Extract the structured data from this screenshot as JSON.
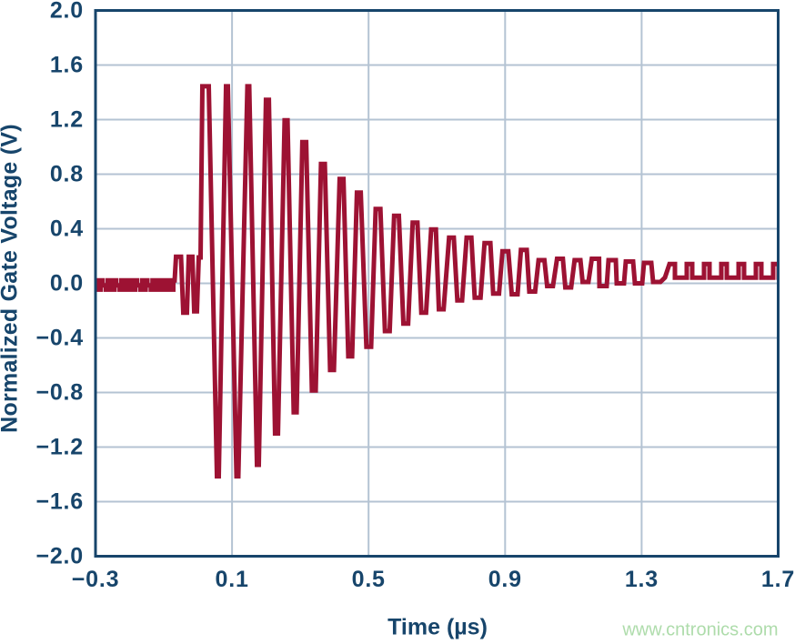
{
  "chart_data": {
    "type": "line",
    "title": "",
    "xlabel": "Time (µs)",
    "ylabel": "Normalized Gate Voltage (V)",
    "xlim": [
      -0.3,
      1.7
    ],
    "ylim": [
      -2.0,
      2.0
    ],
    "xticks": {
      "values": [
        -0.3,
        0.1,
        0.5,
        0.9,
        1.3,
        1.7
      ],
      "labels": [
        "−0.3",
        "0.1",
        "0.5",
        "0.9",
        "1.3",
        "1.7"
      ]
    },
    "yticks": {
      "values": [
        2.0,
        1.6,
        1.2,
        0.8,
        0.4,
        0.0,
        -0.4,
        -0.8,
        -1.2,
        -1.6,
        -2.0
      ],
      "labels": [
        "2.0",
        "1.6",
        "1.2",
        "0.8",
        "0.4",
        "0.0",
        "−0.4",
        "−0.8",
        "−1.2",
        "−1.6",
        "−2.0"
      ]
    },
    "grid": true,
    "legend_position": "none",
    "series": [
      {
        "name": "normalized-gate-voltage",
        "color": "#9d1233",
        "t_us": [
          -0.3,
          -0.3,
          -0.2949,
          -0.2949,
          -0.2899,
          -0.2899,
          -0.2848,
          -0.2848,
          -0.2797,
          -0.2797,
          -0.2747,
          -0.2747,
          -0.2696,
          -0.2696,
          -0.2646,
          -0.2646,
          -0.2595,
          -0.2595,
          -0.2544,
          -0.2544,
          -0.2494,
          -0.2494,
          -0.2443,
          -0.2443,
          -0.2392,
          -0.2392,
          -0.2342,
          -0.2342,
          -0.2291,
          -0.2291,
          -0.2241,
          -0.2241,
          -0.219,
          -0.219,
          -0.2139,
          -0.2139,
          -0.2089,
          -0.2089,
          -0.2038,
          -0.2038,
          -0.1987,
          -0.1987,
          -0.1937,
          -0.1937,
          -0.1886,
          -0.1886,
          -0.1835,
          -0.1835,
          -0.1785,
          -0.1785,
          -0.1734,
          -0.1734,
          -0.1684,
          -0.1684,
          -0.1633,
          -0.1633,
          -0.1582,
          -0.1582,
          -0.1532,
          -0.1532,
          -0.1481,
          -0.1481,
          -0.143,
          -0.143,
          -0.138,
          -0.138,
          -0.1329,
          -0.1329,
          -0.1278,
          -0.1278,
          -0.1228,
          -0.1228,
          -0.1177,
          -0.1177,
          -0.1127,
          -0.1127,
          -0.1076,
          -0.1076,
          -0.1025,
          -0.1025,
          -0.0975,
          -0.0975,
          -0.0924,
          -0.0924,
          -0.0873,
          -0.0873,
          -0.0823,
          -0.0823,
          -0.0772,
          -0.0772,
          -0.0722,
          -0.0722,
          -0.0682,
          -0.0642,
          -0.0495,
          -0.0428,
          -0.0322,
          -0.0268,
          -0.0162,
          -0.0109,
          -0.0029,
          0.0025,
          0.0078,
          0.0131,
          0.0318,
          0.0558,
          0.0611,
          0.0824,
          0.0877,
          0.1131,
          0.1184,
          0.145,
          0.1504,
          0.173,
          0.1783,
          0.1994,
          0.2079,
          0.226,
          0.2346,
          0.254,
          0.2626,
          0.2807,
          0.2892,
          0.306,
          0.3172,
          0.334,
          0.3452,
          0.3606,
          0.3718,
          0.3873,
          0.3985,
          0.4153,
          0.4264,
          0.4406,
          0.4518,
          0.4659,
          0.4771,
          0.4936,
          0.5075,
          0.5208,
          0.5346,
          0.548,
          0.5618,
          0.5749,
          0.5887,
          0.6021,
          0.6159,
          0.6292,
          0.6431,
          0.6546,
          0.6684,
          0.6833,
          0.6972,
          0.706,
          0.7199,
          0.7358,
          0.7497,
          0.7601,
          0.774,
          0.7873,
          0.8011,
          0.811,
          0.828,
          0.8398,
          0.8568,
          0.8651,
          0.8821,
          0.8923,
          0.9093,
          0.9195,
          0.9365,
          0.9464,
          0.9634,
          0.9709,
          0.9879,
          0.9981,
          1.0151,
          1.0231,
          1.0402,
          1.0522,
          1.0692,
          1.0764,
          1.0935,
          1.1036,
          1.1207,
          1.127,
          1.1441,
          1.154,
          1.1753,
          1.1763,
          1.1977,
          1.203,
          1.2243,
          1.227,
          1.2483,
          1.2536,
          1.275,
          1.2803,
          1.3016,
          1.3069,
          1.3282,
          1.3336,
          1.3549,
          1.3682,
          1.3815,
          1.3975,
          1.3975,
          1.4322,
          1.4322,
          1.4482,
          1.4482,
          1.4828,
          1.4828,
          1.4988,
          1.4988,
          1.5334,
          1.5334,
          1.5494,
          1.5494,
          1.5841,
          1.5841,
          1.6001,
          1.6001,
          1.6347,
          1.6347,
          1.6507,
          1.6507,
          1.6853,
          1.6853,
          1.7013,
          1.7013,
          1.7067
        ],
        "v": [
          -0.046,
          -0.046,
          -0.046,
          0.022,
          0.022,
          -0.046,
          -0.046,
          0.022,
          0.022,
          -0.015,
          -0.015,
          -0.015,
          -0.015,
          -0.046,
          -0.046,
          0.022,
          0.022,
          -0.046,
          -0.046,
          0.022,
          0.022,
          -0.046,
          -0.046,
          0.022,
          0.022,
          -0.015,
          -0.015,
          -0.015,
          -0.015,
          -0.046,
          -0.046,
          0.022,
          0.022,
          -0.046,
          -0.046,
          0.022,
          0.022,
          -0.046,
          -0.046,
          0.022,
          0.022,
          -0.046,
          -0.046,
          0.022,
          0.022,
          -0.046,
          -0.046,
          0.022,
          0.022,
          -0.015,
          -0.015,
          -0.015,
          -0.015,
          -0.046,
          -0.046,
          0.022,
          0.022,
          -0.046,
          -0.046,
          0.022,
          0.022,
          -0.015,
          -0.015,
          -0.015,
          -0.015,
          -0.046,
          -0.046,
          0.022,
          0.022,
          -0.046,
          -0.046,
          0.022,
          0.022,
          -0.046,
          -0.046,
          0.022,
          0.022,
          -0.046,
          -0.046,
          0.022,
          0.022,
          -0.046,
          -0.046,
          0.022,
          0.022,
          -0.046,
          -0.046,
          0.022,
          0.022,
          -0.046,
          -0.046,
          0.022,
          0.022,
          0.195,
          0.195,
          -0.215,
          -0.215,
          0.195,
          0.195,
          -0.205,
          -0.205,
          0.19,
          0.19,
          1.444,
          1.444,
          -1.414,
          -1.414,
          1.444,
          1.444,
          -1.414,
          -1.414,
          1.444,
          1.444,
          -1.33,
          -1.33,
          1.345,
          1.345,
          -1.1,
          -1.1,
          1.195,
          1.195,
          -0.945,
          -0.945,
          1.035,
          1.035,
          -0.785,
          -0.785,
          0.875,
          0.875,
          -0.635,
          -0.635,
          0.765,
          0.765,
          -0.535,
          -0.535,
          0.665,
          0.665,
          -0.465,
          -0.465,
          0.545,
          0.545,
          -0.35,
          -0.35,
          0.495,
          0.495,
          -0.295,
          -0.295,
          0.445,
          0.445,
          -0.215,
          -0.215,
          0.395,
          0.395,
          -0.19,
          -0.19,
          0.335,
          0.335,
          -0.125,
          -0.125,
          0.335,
          0.335,
          -0.105,
          -0.105,
          0.295,
          0.295,
          -0.075,
          -0.075,
          0.235,
          0.235,
          -0.08,
          -0.08,
          0.245,
          0.245,
          -0.06,
          -0.06,
          0.17,
          0.17,
          -0.02,
          -0.02,
          0.18,
          0.18,
          -0.03,
          -0.03,
          0.17,
          0.17,
          0.01,
          0.01,
          0.18,
          0.18,
          -0.02,
          -0.02,
          0.17,
          0.17,
          0.0,
          0.0,
          0.16,
          0.16,
          0.0,
          0.0,
          0.15,
          0.15,
          0.01,
          0.01,
          0.042,
          0.142,
          0.142,
          0.042,
          0.042,
          0.142,
          0.142,
          0.042,
          0.042,
          0.142,
          0.142,
          0.042,
          0.042,
          0.142,
          0.142,
          0.042,
          0.042,
          0.142,
          0.142,
          0.042,
          0.042,
          0.142,
          0.142,
          0.042,
          0.042,
          0.142,
          0.142,
          0.042,
          0.042
        ]
      }
    ]
  },
  "style": {
    "background": "#ffffff",
    "axis_color": "#17456b",
    "grid_color": "#b4c3d3",
    "trace_color": "#9d1233",
    "watermark_color": "#aedcab"
  },
  "watermark": {
    "text": "www.cntronics.com"
  }
}
